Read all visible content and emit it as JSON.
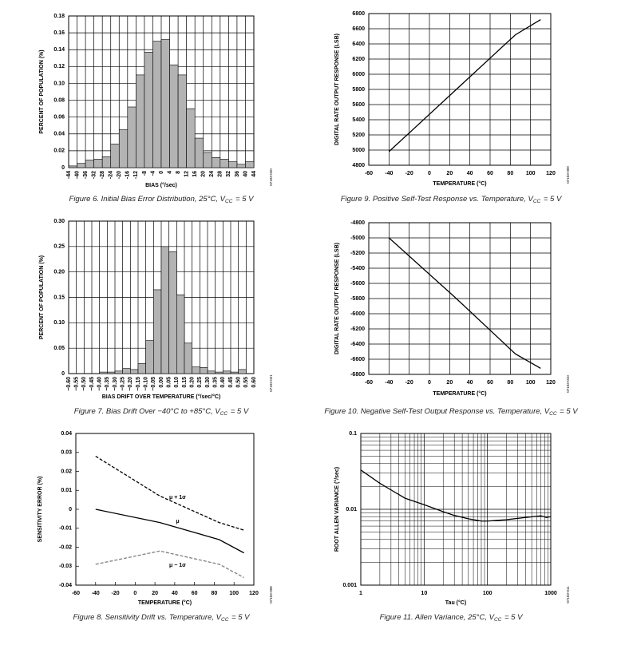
{
  "chart_data": [
    {
      "type": "histogram",
      "caption": [
        "Figure 6. Initial Bias Error Distribution, 25°C, V",
        "CC",
        " = 5 V"
      ],
      "figure_code": "07103-020",
      "xlabel": "BIAS (°/sec)",
      "ylabel": "PERCENT OF POPULATION (%)",
      "bins": [
        -44,
        -40,
        -36,
        -32,
        -28,
        -24,
        -20,
        -16,
        -12,
        -8,
        -4,
        0,
        4,
        8,
        12,
        16,
        20,
        24,
        28,
        32,
        36,
        40,
        44
      ],
      "values": [
        0.002,
        0.005,
        0.009,
        0.01,
        0.013,
        0.028,
        0.045,
        0.072,
        0.11,
        0.137,
        0.15,
        0.152,
        0.122,
        0.11,
        0.07,
        0.035,
        0.018,
        0.012,
        0.01,
        0.007,
        0.004,
        0.007
      ],
      "color": "#b3b3b3",
      "xlim": [
        -44,
        44
      ],
      "xticks": [
        -44,
        -40,
        -36,
        -32,
        -28,
        -24,
        -20,
        -16,
        -12,
        -8,
        -4,
        0,
        4,
        8,
        12,
        16,
        20,
        24,
        28,
        32,
        36,
        40,
        44
      ],
      "ylim": [
        0,
        0.18
      ],
      "yticks": [
        0,
        0.02,
        0.04,
        0.06,
        0.08,
        {
          "value": 0.1,
          "label": "0.10"
        },
        0.12,
        0.14,
        0.16,
        0.18
      ],
      "grid": true
    },
    {
      "type": "histogram",
      "caption": [
        "Figure 7. Bias Drift Over −40°C to +85°C, V",
        "CC",
        " = 5 V"
      ],
      "figure_code": "07103-021",
      "xlabel": "BIAS DRIFT OVER TEMPERATURE (°/sec/°C)",
      "ylabel": "PERCENT OF POPULATION (%)",
      "bins": [
        -0.6,
        -0.55,
        -0.5,
        -0.45,
        -0.4,
        -0.35,
        -0.3,
        -0.25,
        -0.2,
        -0.15,
        -0.1,
        -0.05,
        0,
        0.05,
        0.1,
        0.15,
        0.2,
        0.25,
        0.3,
        0.35,
        0.4,
        0.45,
        0.5,
        0.55,
        0.6
      ],
      "values": [
        0,
        0,
        0,
        0,
        0.003,
        0.003,
        0.005,
        0.01,
        0.008,
        0.02,
        0.065,
        0.165,
        0.25,
        0.24,
        0.155,
        0.06,
        0.013,
        0.012,
        0.005,
        0.003,
        0.005,
        0.003,
        0.008,
        0
      ],
      "color": "#b3b3b3",
      "xlim": [
        -0.6,
        0.6
      ],
      "xticks": [
        {
          "value": -0.6,
          "label": "−0.60"
        },
        {
          "value": -0.55,
          "label": "−0.55"
        },
        {
          "value": -0.5,
          "label": "−0.50"
        },
        {
          "value": -0.45,
          "label": "−0.45"
        },
        {
          "value": -0.4,
          "label": "−0.40"
        },
        {
          "value": -0.35,
          "label": "−0.35"
        },
        {
          "value": -0.3,
          "label": "−0.30"
        },
        {
          "value": -0.25,
          "label": "−0.25"
        },
        {
          "value": -0.2,
          "label": "−0.20"
        },
        {
          "value": -0.15,
          "label": "−0.15"
        },
        {
          "value": -0.1,
          "label": "−0.10"
        },
        {
          "value": -0.05,
          "label": "−0.05"
        },
        {
          "value": 0,
          "label": "0.00"
        },
        {
          "value": 0.05,
          "label": "0.05"
        },
        {
          "value": 0.1,
          "label": "0.10"
        },
        {
          "value": 0.15,
          "label": "0.15"
        },
        {
          "value": 0.2,
          "label": "0.20"
        },
        {
          "value": 0.25,
          "label": "0.25"
        },
        {
          "value": 0.3,
          "label": "0.30"
        },
        {
          "value": 0.35,
          "label": "0.35"
        },
        {
          "value": 0.4,
          "label": "0.40"
        },
        {
          "value": 0.45,
          "label": "0.45"
        },
        {
          "value": 0.5,
          "label": "0.50"
        },
        {
          "value": 0.55,
          "label": "0.55"
        },
        {
          "value": 0.6,
          "label": "0.60"
        }
      ],
      "ylim": [
        0,
        0.3
      ],
      "yticks": [
        0,
        0.05,
        {
          "value": 0.1,
          "label": "0.10"
        },
        0.15,
        {
          "value": 0.2,
          "label": "0.20"
        },
        0.25,
        {
          "value": 0.3,
          "label": "0.30"
        }
      ],
      "grid": true
    },
    {
      "type": "line",
      "caption": [
        "Figure 8. Sensitivity Drift vs. Temperature, V",
        "CC",
        " = 5 V"
      ],
      "figure_code": "07103-008",
      "xlabel": "TEMPERATURE (°C)",
      "ylabel": "SENSITIVITY ERROR (%)",
      "x": [
        -40,
        25,
        85,
        110
      ],
      "series": [
        {
          "name": "μ + 1σ",
          "color": "#000000",
          "dash": true,
          "values": [
            0.028,
            0.007,
            -0.007,
            -0.011
          ]
        },
        {
          "name": "μ",
          "color": "#000000",
          "dash": false,
          "values": [
            0,
            -0.007,
            -0.016,
            -0.023
          ]
        },
        {
          "name": "μ − 1σ",
          "color": "#808080",
          "dash": true,
          "values": [
            -0.029,
            -0.022,
            -0.029,
            -0.036
          ]
        }
      ],
      "xlim": [
        -60,
        120
      ],
      "xticks": [
        -60,
        -40,
        -20,
        0,
        20,
        40,
        60,
        80,
        100,
        120
      ],
      "ylim": [
        -0.04,
        0.04
      ],
      "yticks": [
        -0.04,
        -0.03,
        -0.02,
        -0.01,
        0,
        0.01,
        0.02,
        0.03,
        0.04
      ],
      "grid": false
    },
    {
      "type": "line",
      "caption": [
        "Figure 9. Positive Self-Test Response vs. Temperature, V",
        "CC",
        " = 5 V"
      ],
      "figure_code": "07103-009",
      "xlabel": "TEMPERATURE (°C)",
      "ylabel": "DIGITAL RATE OUTPUT RESPONSE (LSB)",
      "x": [
        -40,
        25,
        85,
        110
      ],
      "values": [
        4980,
        5780,
        6520,
        6720
      ],
      "color": "#000000",
      "xlim": [
        -60,
        120
      ],
      "xticks": [
        -60,
        -40,
        -20,
        0,
        20,
        40,
        60,
        80,
        100,
        120
      ],
      "ylim": [
        4800,
        6800
      ],
      "yticks": [
        4800,
        5000,
        5200,
        5400,
        5600,
        5800,
        6000,
        6200,
        6400,
        6600,
        6800
      ],
      "grid": true
    },
    {
      "type": "line",
      "caption": [
        "Figure 10. Negative Self-Test Output Response vs. Temperature, V",
        "CC",
        " = 5 V"
      ],
      "figure_code": "07103-010",
      "xlabel": "TEMPERATURE (°C)",
      "ylabel": "DIGITAL RATE OUTPUT RESPONSE (LSB)",
      "x": [
        -40,
        25,
        85,
        110
      ],
      "values": [
        -5000,
        -5780,
        -6530,
        -6720
      ],
      "color": "#000000",
      "xlim": [
        -60,
        120
      ],
      "xticks": [
        -60,
        -40,
        -20,
        0,
        20,
        40,
        60,
        80,
        100,
        120
      ],
      "ylim": [
        -6800,
        -4800
      ],
      "yticks": [
        -6800,
        -6600,
        -6400,
        -6200,
        -6000,
        -5800,
        -5600,
        -5400,
        -5200,
        -5000,
        -4800
      ],
      "grid": true
    },
    {
      "type": "line",
      "caption": [
        "Figure 11. Allen Variance, 25°C, V",
        "CC",
        " = 5 V"
      ],
      "figure_code": "07103-011",
      "xlabel": "Tau (°C)",
      "ylabel": "ROOT ALLEN VARIANCE (°/sec)",
      "x": [
        1,
        2,
        3,
        5,
        10,
        20,
        30,
        50,
        80,
        100,
        200,
        400,
        700,
        850,
        1000
      ],
      "values": [
        0.033,
        0.022,
        0.018,
        0.014,
        0.0115,
        0.0093,
        0.0083,
        0.0075,
        0.007,
        0.007,
        0.0073,
        0.0078,
        0.0082,
        0.0078,
        0.008
      ],
      "color": "#000000",
      "log_x": true,
      "log_y": true,
      "xlim": [
        1,
        1000
      ],
      "xticks": [
        1,
        10,
        100,
        1000
      ],
      "xminor_ticks": [
        2,
        3,
        4,
        5,
        6,
        7,
        8,
        9,
        20,
        30,
        40,
        50,
        60,
        70,
        80,
        90,
        200,
        300,
        400,
        500,
        600,
        700,
        800,
        900
      ],
      "ylim": [
        0.001,
        0.1
      ],
      "yticks": [
        0.001,
        0.01,
        0.1
      ],
      "yminor_ticks": [
        0.002,
        0.003,
        0.004,
        0.005,
        0.006,
        0.007,
        0.008,
        0.009,
        0.02,
        0.03,
        0.04,
        0.05,
        0.06,
        0.07,
        0.08,
        0.09
      ],
      "grid": true
    }
  ]
}
